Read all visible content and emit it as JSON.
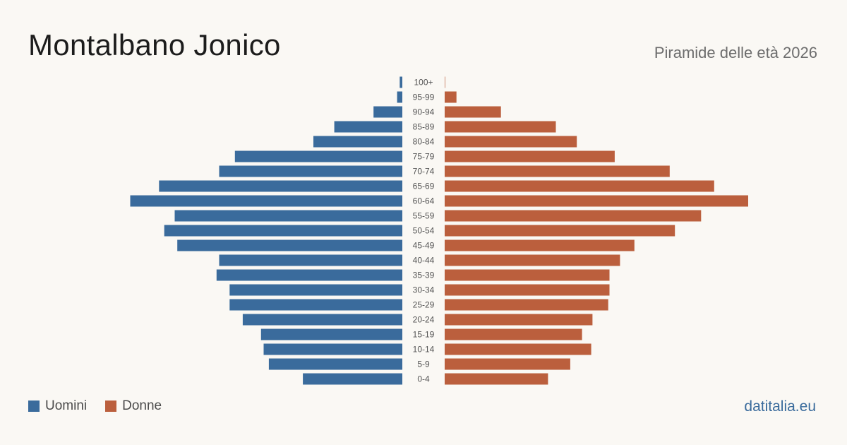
{
  "header": {
    "title": "Montalbano Jonico",
    "subtitle": "Piramide delle età 2026"
  },
  "legend": {
    "men_label": "Uomini",
    "women_label": "Donne"
  },
  "footer": {
    "brand": "datitalia.eu"
  },
  "colors": {
    "men": "#3a6b9c",
    "women": "#bb5f3d",
    "age_label": "#555555",
    "background": "#faf8f4"
  },
  "chart_data": {
    "type": "bar",
    "orientation": "horizontal-pyramid",
    "categories": [
      "100+",
      "95-99",
      "90-94",
      "85-89",
      "80-84",
      "75-79",
      "70-74",
      "65-69",
      "60-64",
      "55-59",
      "50-54",
      "45-49",
      "40-44",
      "35-39",
      "30-34",
      "25-29",
      "20-24",
      "15-19",
      "10-14",
      "5-9",
      "0-4"
    ],
    "series": [
      {
        "name": "Uomini",
        "color": "#3a6b9c",
        "values": [
          1,
          2,
          11,
          26,
          34,
          64,
          70,
          93,
          104,
          87,
          91,
          86,
          70,
          71,
          66,
          66,
          61,
          54,
          53,
          51,
          38
        ]
      },
      {
        "name": "Donne",
        "color": "#bb5f3d",
        "values": [
          0.2,
          4.5,
          21.5,
          42.5,
          50.5,
          65,
          86,
          103,
          116,
          98,
          88,
          72.5,
          67,
          63,
          63,
          62.5,
          56.5,
          52.5,
          56,
          48,
          39.5
        ]
      }
    ],
    "axis_max": 116,
    "grid": false,
    "legend_position": "bottom-left"
  }
}
